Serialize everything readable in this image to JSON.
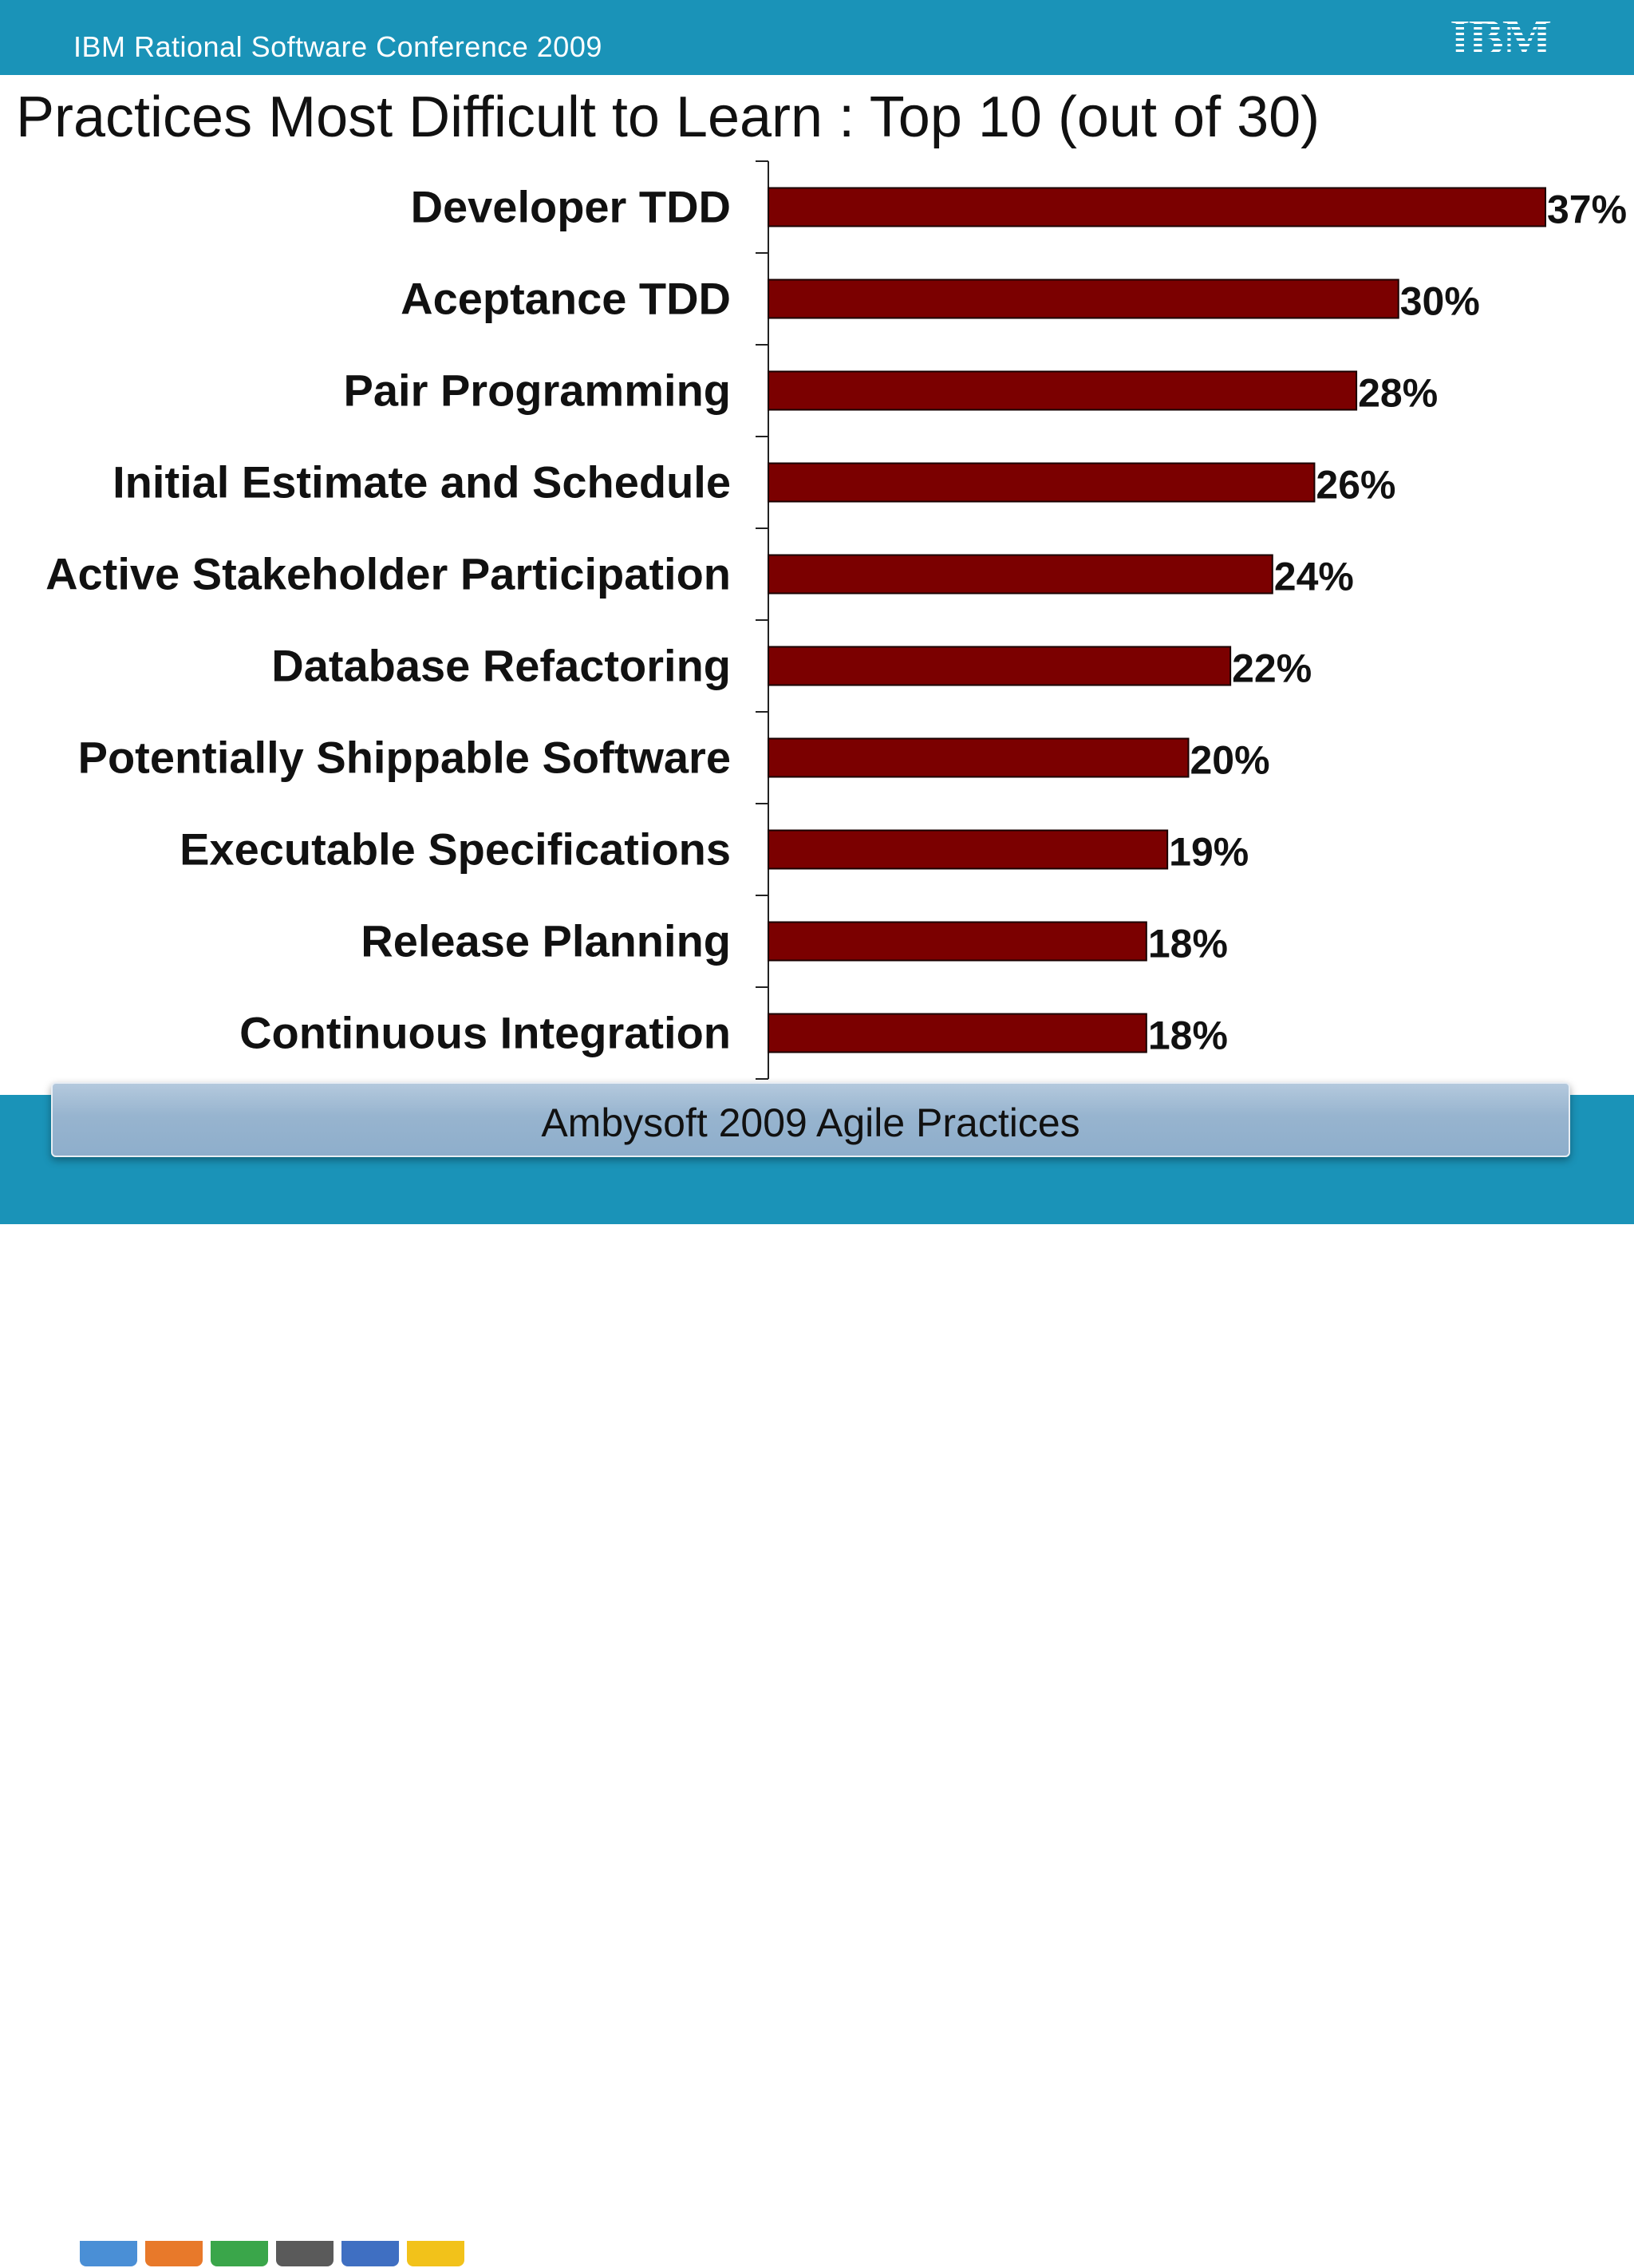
{
  "header": {
    "conference_title": "IBM Rational Software Conference 2009",
    "logo_text": "IBM",
    "band_color": "#1a93b8"
  },
  "slide": {
    "title": "Practices Most Difficult to Learn : Top 10 (out of 30)"
  },
  "chart_data": {
    "type": "bar",
    "orientation": "horizontal",
    "title": "",
    "xlabel": "",
    "ylabel": "",
    "categories": [
      "Developer TDD",
      "Aceptance TDD",
      "Pair Programming",
      "Initial Estimate and Schedule",
      "Active Stakeholder Participation",
      "Database Refactoring",
      "Potentially Shippable Software",
      "Executable Specifications",
      "Release Planning",
      "Continuous Integration"
    ],
    "values": [
      37,
      30,
      28,
      26,
      24,
      22,
      20,
      19,
      18,
      18
    ],
    "value_labels": [
      "37%",
      "30%",
      "28%",
      "26%",
      "24%",
      "22%",
      "20%",
      "19%",
      "18%",
      "18%"
    ],
    "xlim": [
      0,
      37
    ],
    "grid": false,
    "legend": "none",
    "bar_color": "#7b0000"
  },
  "footer": {
    "caption": "Ambysoft 2009 Agile Practices"
  }
}
